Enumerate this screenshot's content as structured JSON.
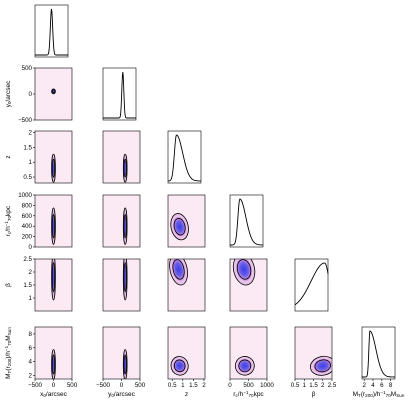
{
  "chart_data": {
    "type": "corner",
    "parameters": [
      {
        "id": "x0",
        "axis_label": "x₀/arcsec",
        "range": [
          -500,
          500
        ],
        "ticks": [
          -500,
          0,
          500
        ],
        "tick_labels": [
          "−500",
          "0",
          "500"
        ]
      },
      {
        "id": "y0",
        "axis_label": "y₀/arcsec",
        "range": [
          -500,
          500
        ],
        "ticks": [
          -500,
          0,
          500
        ],
        "tick_labels": [
          "−500",
          "0",
          "500"
        ]
      },
      {
        "id": "z",
        "axis_label": "z",
        "range": [
          0.3,
          2.05
        ],
        "ticks": [
          0.5,
          1,
          1.5,
          2
        ],
        "tick_labels": [
          "0.5",
          "1",
          "1.5",
          "2"
        ]
      },
      {
        "id": "rc",
        "axis_label": "r_c/h⁻¹₇₀kpc",
        "range": [
          0,
          1000
        ],
        "ticks": [
          0,
          200,
          400,
          600,
          800,
          1000
        ],
        "tick_labels": [
          "0",
          "200",
          "400",
          "600",
          "800",
          "1000"
        ],
        "x_ticks": [
          0,
          500,
          1000
        ],
        "x_tick_labels": [
          "0",
          "500",
          "1000"
        ]
      },
      {
        "id": "beta",
        "axis_label": "β",
        "range": [
          0.5,
          2.5
        ],
        "ticks": [
          1,
          1.5,
          2,
          2.5
        ],
        "tick_labels": [
          "1",
          "1.5",
          "2",
          "2.5"
        ],
        "x_ticks": [
          0.5,
          1,
          1.5,
          2,
          2.5
        ],
        "x_tick_labels": [
          "0.5",
          "1",
          "1.5",
          "2",
          "2.5"
        ]
      },
      {
        "id": "MT",
        "axis_label": "M_T(r₂₀₀)/h⁻¹₇₀M_Sun",
        "range": [
          1.5,
          9
        ],
        "ticks": [
          2,
          4,
          6,
          8
        ],
        "tick_labels": [
          "2",
          "4",
          "6",
          "8"
        ]
      }
    ],
    "marginals": [
      {
        "parameter": "x0",
        "peak": 0,
        "width": 35,
        "skew": 0
      },
      {
        "parameter": "y0",
        "peak": 100,
        "width": 30,
        "skew": 0
      },
      {
        "parameter": "z",
        "peak": 0.75,
        "width": 0.22,
        "skew": 0.5
      },
      {
        "parameter": "rc",
        "peak": 300,
        "width": 120,
        "skew": 0.5
      },
      {
        "parameter": "beta",
        "peak": 2.3,
        "width": 0.55,
        "skew": -0.5
      },
      {
        "parameter": "MT",
        "peak": 3.3,
        "width": 0.8,
        "skew": 0.7
      }
    ],
    "joint_distributions": [
      {
        "row": "y0",
        "col": "x0",
        "center": [
          0,
          50
        ],
        "sigma": [
          35,
          35
        ],
        "shape": "compact"
      },
      {
        "row": "z",
        "col": "x0",
        "center": [
          0,
          0.8
        ],
        "sigma": [
          35,
          0.35
        ],
        "shape": "narrow-vertical"
      },
      {
        "row": "z",
        "col": "y0",
        "center": [
          100,
          0.8
        ],
        "sigma": [
          30,
          0.35
        ],
        "shape": "narrow-vertical"
      },
      {
        "row": "rc",
        "col": "x0",
        "center": [
          0,
          400
        ],
        "sigma": [
          35,
          260
        ],
        "shape": "narrow-vertical"
      },
      {
        "row": "rc",
        "col": "y0",
        "center": [
          100,
          400
        ],
        "sigma": [
          30,
          260
        ],
        "shape": "narrow-vertical"
      },
      {
        "row": "rc",
        "col": "z",
        "center": [
          0.85,
          390
        ],
        "sigma": [
          0.3,
          190
        ],
        "shape": "blob"
      },
      {
        "row": "beta",
        "col": "x0",
        "center": [
          0,
          1.8
        ],
        "sigma": [
          35,
          0.65
        ],
        "shape": "narrow-vertical"
      },
      {
        "row": "beta",
        "col": "y0",
        "center": [
          100,
          1.8
        ],
        "sigma": [
          30,
          0.65
        ],
        "shape": "narrow-vertical"
      },
      {
        "row": "beta",
        "col": "z",
        "center": [
          0.8,
          2.1
        ],
        "sigma": [
          0.3,
          0.45
        ],
        "shape": "blob"
      },
      {
        "row": "beta",
        "col": "rc",
        "center": [
          380,
          2.1
        ],
        "sigma": [
          210,
          0.45
        ],
        "shape": "blob"
      },
      {
        "row": "MT",
        "col": "x0",
        "center": [
          0,
          3.6
        ],
        "sigma": [
          35,
          1.6
        ],
        "shape": "narrow-vertical"
      },
      {
        "row": "MT",
        "col": "y0",
        "center": [
          100,
          3.6
        ],
        "sigma": [
          30,
          1.6
        ],
        "shape": "narrow-vertical"
      },
      {
        "row": "MT",
        "col": "z",
        "center": [
          0.85,
          3.4
        ],
        "sigma": [
          0.3,
          1.0
        ],
        "shape": "blob"
      },
      {
        "row": "MT",
        "col": "rc",
        "center": [
          400,
          3.4
        ],
        "sigma": [
          190,
          1.0
        ],
        "shape": "blob"
      },
      {
        "row": "MT",
        "col": "beta",
        "center": [
          2.0,
          3.4
        ],
        "sigma": [
          0.5,
          1.0
        ],
        "shape": "blob"
      }
    ],
    "contour_levels": [
      "68%",
      "95%"
    ],
    "colors": {
      "density_low": "#fbeaf3",
      "density_mid": "#c77bd8",
      "density_high": "#3a3ee8",
      "contour": "#000000",
      "marginal_line": "#000000"
    },
    "grid": false,
    "legend": "none"
  }
}
